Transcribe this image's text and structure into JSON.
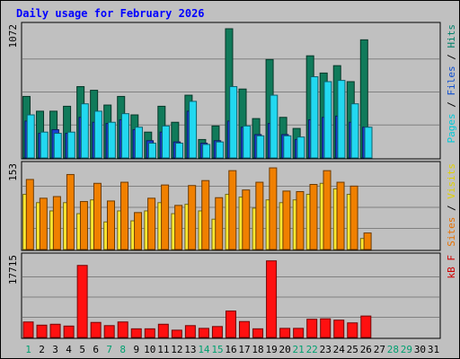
{
  "chart_data": {
    "type": "bar",
    "title": "Daily usage for February 2026",
    "categories": [
      "1",
      "2",
      "3",
      "4",
      "5",
      "6",
      "7",
      "8",
      "9",
      "10",
      "11",
      "12",
      "13",
      "14",
      "15",
      "16",
      "17",
      "18",
      "19",
      "20",
      "21",
      "22",
      "23",
      "24",
      "25",
      "26",
      "27",
      "28",
      "29",
      "30",
      "31"
    ],
    "weekend_days": [
      1,
      7,
      8,
      14,
      15,
      21,
      22,
      28,
      29
    ],
    "panels": [
      {
        "id": "hits",
        "max_label": "1072",
        "ymax": 1072,
        "right_label": [
          {
            "text": "Pages",
            "color": "#00c8d8"
          },
          {
            "text": " / ",
            "color": "#000000"
          },
          {
            "text": "Files",
            "color": "#1050d0"
          },
          {
            "text": " / ",
            "color": "#000000"
          },
          {
            "text": "Hits",
            "color": "#00806a"
          }
        ],
        "series": [
          {
            "name": "Hits",
            "color": "#107a5a",
            "values": [
              500,
              380,
              380,
              420,
              580,
              550,
              430,
              500,
              350,
              210,
              420,
              290,
              510,
              150,
              260,
              1050,
              560,
              320,
              800,
              330,
              240,
              830,
              690,
              750,
              620,
              960,
              0,
              0,
              0,
              0,
              0
            ]
          },
          {
            "name": "Files",
            "color": "#1a40d0",
            "values": [
              300,
              200,
              230,
              200,
              330,
              290,
              280,
              310,
              230,
              140,
              210,
              130,
              380,
              120,
              140,
              300,
              250,
              190,
              280,
              190,
              150,
              310,
              330,
              340,
              290,
              250,
              0,
              0,
              0,
              0,
              0
            ]
          },
          {
            "name": "Pages",
            "color": "#22d8f0",
            "values": [
              350,
              210,
              200,
              210,
              440,
              380,
              290,
              360,
              250,
              120,
              260,
              120,
              460,
              110,
              130,
              580,
              260,
              180,
              510,
              180,
              170,
              660,
              620,
              630,
              440,
              250,
              0,
              0,
              0,
              0,
              0
            ]
          }
        ]
      },
      {
        "id": "visits",
        "max_label": "153",
        "ymax": 153,
        "right_label": [
          {
            "text": "Sites",
            "color": "#e87000"
          },
          {
            "text": " / ",
            "color": "#000000"
          },
          {
            "text": "Visits",
            "color": "#e0d000"
          }
        ],
        "series": [
          {
            "name": "Sites",
            "color": "#ffe830",
            "values": [
              100,
              85,
              70,
              85,
              65,
              90,
              50,
              70,
              52,
              70,
              85,
              65,
              82,
              70,
              55,
              100,
              95,
              75,
              90,
              85,
              90,
              100,
              120,
              110,
              100,
              20,
              0,
              0,
              0,
              0,
              0
            ]
          },
          {
            "name": "Visits",
            "color": "#f08000",
            "values": [
              127,
              93,
              96,
              136,
              87,
              120,
              88,
              122,
              67,
              93,
              117,
              80,
              116,
              125,
              94,
              143,
              108,
              122,
              148,
              106,
              105,
              118,
              143,
              122,
              115,
              30,
              0,
              0,
              0,
              0,
              0
            ]
          }
        ]
      },
      {
        "id": "kbytes",
        "max_label": "17715",
        "ymax": 17715,
        "right_label": [
          {
            "text": "kB F",
            "color": "#d00000"
          }
        ],
        "series": [
          {
            "name": "kB F",
            "color": "#ff1010",
            "values": [
              3400,
              2700,
              2900,
              2500,
              15800,
              3300,
              2600,
              3400,
              1900,
              1900,
              2900,
              1600,
              2600,
              2000,
              2400,
              5800,
              3500,
              1900,
              16800,
              2000,
              2000,
              4000,
              4100,
              3800,
              3200,
              4700,
              0,
              0,
              0,
              0,
              0
            ]
          }
        ]
      }
    ]
  }
}
